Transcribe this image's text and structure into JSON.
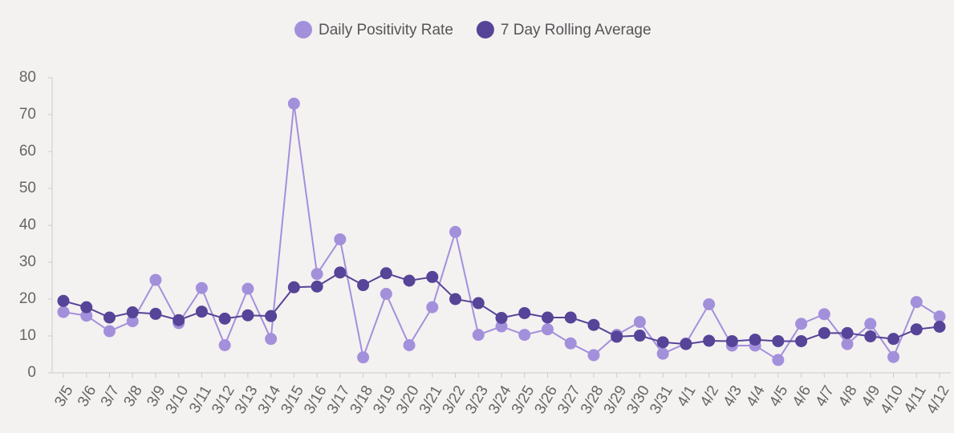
{
  "chart_data": {
    "type": "line",
    "categories": [
      "3/5",
      "3/6",
      "3/7",
      "3/8",
      "3/9",
      "3/10",
      "3/11",
      "3/12",
      "3/13",
      "3/14",
      "3/15",
      "3/16",
      "3/17",
      "3/18",
      "3/19",
      "3/20",
      "3/21",
      "3/22",
      "3/23",
      "3/24",
      "3/25",
      "3/26",
      "3/27",
      "3/28",
      "3/29",
      "3/30",
      "3/31",
      "4/1",
      "4/2",
      "4/3",
      "4/4",
      "4/5",
      "4/6",
      "4/7",
      "4/8",
      "4/9",
      "4/10",
      "4/11",
      "4/12"
    ],
    "series": [
      {
        "name": "Daily Positivity Rate",
        "color": "#a390db",
        "values": [
          16.5,
          15.5,
          11.3,
          14,
          25.2,
          13.5,
          23,
          7.5,
          22.8,
          9.2,
          73,
          26.8,
          36.2,
          4.2,
          21.4,
          7.5,
          17.8,
          38.2,
          10.3,
          12.6,
          10.3,
          11.8,
          8,
          4.8,
          10.3,
          13.8,
          5.2,
          8,
          18.6,
          7.4,
          7.4,
          3.5,
          13.3,
          15.9,
          7.8,
          13.3,
          4.3,
          19.2,
          15.3
        ]
      },
      {
        "name": "7 Day Rolling Average",
        "color": "#554497",
        "values": [
          19.5,
          17.8,
          15,
          16.4,
          16,
          14.3,
          16.6,
          14.7,
          15.6,
          15.4,
          23.2,
          23.4,
          27.2,
          23.8,
          27,
          25,
          26,
          20,
          18.9,
          14.9,
          16.2,
          15,
          15,
          13,
          9.8,
          10.1,
          8.3,
          7.8,
          8.7,
          8.6,
          9,
          8.6,
          8.6,
          10.8,
          10.8,
          9.9,
          9.2,
          11.8,
          12.5
        ]
      }
    ],
    "ylim": [
      0,
      80
    ],
    "yticks": [
      0,
      10,
      20,
      30,
      40,
      50,
      60,
      70,
      80
    ],
    "legend": "top",
    "grid": false
  }
}
